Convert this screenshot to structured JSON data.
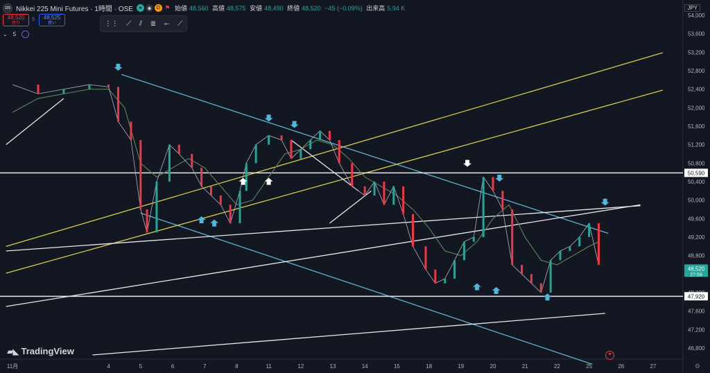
{
  "header": {
    "badge": "225",
    "title": "Nikkei 225 Mini Futures · 1時間 · OSE",
    "icons": [
      "green-circle-icon",
      "eye-icon",
      "d-badge-icon",
      "flag-icon"
    ],
    "d_label": "D",
    "ohlc": {
      "open_label": "始値",
      "open": "48,560",
      "high_label": "高値",
      "high": "48,575",
      "low_label": "安値",
      "low": "48,490",
      "close_label": "終値",
      "close": "48,520",
      "change": "−45 (−0.09%)",
      "volume_label": "出来高",
      "volume": "5.94 K"
    }
  },
  "trade": {
    "sell_price": "48,520",
    "sell_label": "売り",
    "spread": "5",
    "buy_price": "48,525",
    "buy_label": "買い"
  },
  "indicator": {
    "label": "5"
  },
  "toolbar": {
    "icons": [
      "drag-handle-icon",
      "trend-line-icon",
      "parallel-channel-icon",
      "multi-line-icon",
      "ray-icon",
      "extended-line-icon"
    ]
  },
  "currency": "JPY",
  "branding": "TradingView",
  "colors": {
    "background": "#131722",
    "up": "#26a69a",
    "down": "#f23645",
    "ma": "#5a7f52",
    "cyan": "#5fb2cf",
    "yellow": "#d9cd4a",
    "white": "#e8e8e8",
    "arrow_cyan": "#4fb6dc",
    "arrow_white": "#ffffff"
  },
  "chart_data": {
    "type": "line",
    "title": "Nikkei 225 Mini Futures · 1時間 · OSE",
    "y_ticks": [
      46800,
      47200,
      47600,
      48000,
      48400,
      48800,
      49200,
      49600,
      50000,
      50400,
      50800,
      51200,
      51600,
      52000,
      52400,
      52800,
      53200,
      53600,
      54000
    ],
    "ylim": [
      46560,
      54180
    ],
    "x_ticks": [
      "11月",
      "4",
      "5",
      "6",
      "7",
      "8",
      "11",
      "12",
      "13",
      "14",
      "15",
      "18",
      "19",
      "20",
      "21",
      "22",
      "25",
      "26",
      "27"
    ],
    "x_ticks_positions": [
      0,
      3,
      4,
      5,
      6,
      7,
      8,
      9,
      10,
      11,
      12,
      13,
      14,
      15,
      16,
      17,
      18,
      19,
      20
    ],
    "price_series": {
      "name": "",
      "x": [
        0,
        0.8,
        1.6,
        2.4,
        3.0,
        3.3,
        3.7,
        4.0,
        4.2,
        4.5,
        4.9,
        5.2,
        5.6,
        5.9,
        6.2,
        6.5,
        6.8,
        7.1,
        7.3,
        7.6,
        8.0,
        8.4,
        8.7,
        9.0,
        9.3,
        9.6,
        9.9,
        10.2,
        10.6,
        11.0,
        11.3,
        11.6,
        11.9,
        12.2,
        12.5,
        12.9,
        13.2,
        13.5,
        13.8,
        14.1,
        14.4,
        14.7,
        15.0,
        15.3,
        15.6,
        15.9,
        16.2,
        16.5,
        16.8,
        17.1,
        17.4,
        17.7,
        18.0,
        18.3
      ],
      "y": [
        52500,
        52300,
        52400,
        52500,
        52450,
        51700,
        51300,
        49800,
        49300,
        50400,
        51200,
        51000,
        50700,
        50300,
        50100,
        49900,
        49500,
        50200,
        50800,
        51200,
        51400,
        51300,
        50900,
        51100,
        51300,
        51500,
        51300,
        50800,
        50300,
        50100,
        50400,
        49900,
        50300,
        49700,
        49000,
        48500,
        48200,
        48300,
        48700,
        49100,
        49200,
        50500,
        50200,
        49800,
        48600,
        48400,
        48200,
        48000,
        48700,
        48900,
        49000,
        49200,
        49500,
        48600
      ]
    },
    "ma_series": {
      "name": "",
      "x": [
        0,
        0.8,
        1.6,
        2.4,
        3.0,
        3.5,
        4.0,
        4.5,
        5.0,
        5.5,
        6.0,
        6.5,
        7.0,
        7.5,
        8.0,
        8.5,
        9.0,
        9.5,
        10.0,
        10.5,
        11.0,
        11.5,
        12.0,
        12.5,
        13.0,
        13.5,
        14.0,
        14.5,
        15.0,
        15.5,
        16.0,
        16.5,
        17.0,
        17.5,
        18.0,
        18.3
      ],
      "y": [
        51900,
        52200,
        52300,
        52400,
        52400,
        52000,
        50800,
        50500,
        50700,
        50900,
        50700,
        50300,
        49900,
        50000,
        50500,
        51000,
        51100,
        51300,
        51200,
        50900,
        50500,
        50300,
        50100,
        49800,
        49400,
        48900,
        48800,
        49100,
        49600,
        49900,
        49200,
        48700,
        48600,
        48800,
        49000,
        49100
      ]
    },
    "horizontal_levels": [
      50590,
      47920
    ],
    "last_price": 48520,
    "last_price_sub": "27:59",
    "annotations": {
      "cyan_down_arrows": 5,
      "cyan_up_arrows": 5,
      "white_up_arrows": 2,
      "white_down_arrows": 1
    },
    "grid": false
  }
}
